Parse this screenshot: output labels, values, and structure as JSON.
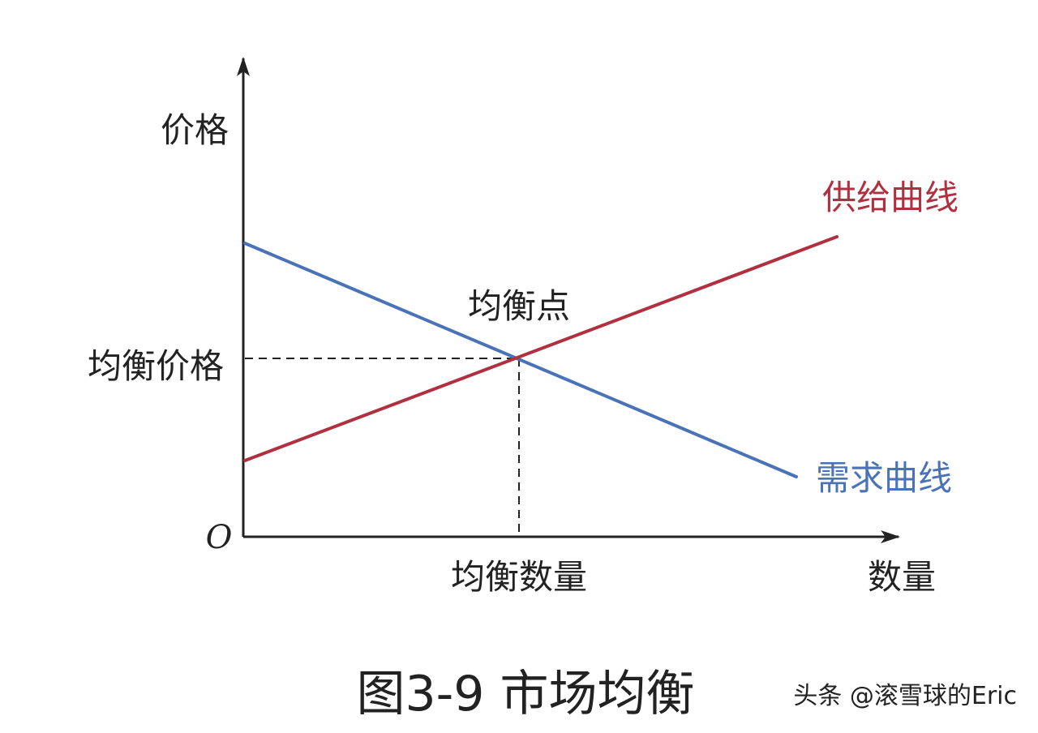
{
  "labels": {
    "y_axis": "价格",
    "x_axis": "数量",
    "origin": "O",
    "equilibrium_price": "均衡价格",
    "equilibrium_quantity": "均衡数量",
    "equilibrium_point": "均衡点",
    "supply_curve": "供给曲线",
    "demand_curve": "需求曲线"
  },
  "caption": "图3-9 市场均衡",
  "watermark": "头条 @滚雪球的Eric",
  "colors": {
    "supply": "#b0303f",
    "demand": "#4a72b8",
    "axis": "#222222",
    "text": "#222222"
  }
}
